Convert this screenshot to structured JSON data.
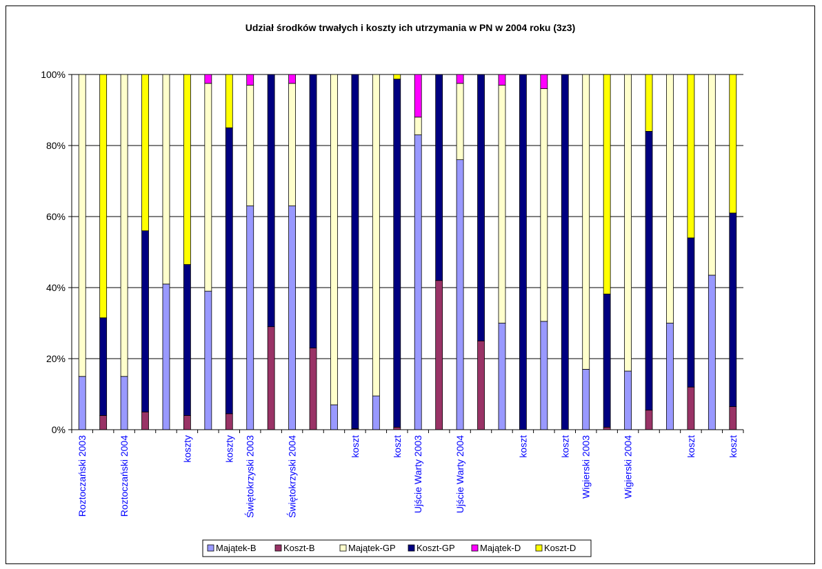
{
  "chart_data": {
    "type": "bar",
    "stacked": "percent",
    "title": "Udział środków trwałych i koszty ich utrzymania w PN w 2004 roku (3z3)",
    "xlabel": "",
    "ylabel": "",
    "ylim": [
      0,
      100
    ],
    "y_ticks": [
      "0%",
      "20%",
      "40%",
      "60%",
      "80%",
      "100%"
    ],
    "grid": true,
    "legend_position": "bottom",
    "categories": [
      "Roztoczański 2003",
      "",
      "Roztoczański 2004",
      "",
      "",
      "koszty",
      "",
      "koszty",
      "Świętokrzyski 2003",
      "",
      "Świętokrzyski 2004",
      "",
      "",
      "koszt",
      "",
      "koszt",
      "Ujście Warty 2003",
      "",
      "Ujście Warty 2004",
      "",
      "",
      "koszt",
      "",
      "koszt",
      "Wigierski 2003",
      "",
      "Wigierski 2004",
      "",
      "",
      "koszt",
      "",
      "koszt"
    ],
    "series": [
      {
        "name": "Majątek-B",
        "color": "#9999ff",
        "values": [
          15,
          0,
          15,
          0,
          41,
          0,
          39,
          0,
          63,
          0,
          63,
          0,
          7,
          0,
          9.5,
          0,
          83,
          0,
          76,
          0,
          30,
          0,
          30.5,
          0,
          17,
          0,
          16.5,
          0,
          30,
          0,
          43.5,
          0
        ]
      },
      {
        "name": "Koszt-B",
        "color": "#993366",
        "values": [
          0,
          4,
          0,
          5,
          0,
          4,
          0,
          4.5,
          0,
          29,
          0,
          23,
          0,
          0.3,
          0,
          0.7,
          0,
          42,
          0,
          25,
          0,
          0,
          0,
          0,
          0,
          0.7,
          0,
          5.5,
          0,
          12,
          0,
          6.5
        ]
      },
      {
        "name": "Majątek-GP",
        "color": "#ffffcc",
        "values": [
          85,
          0,
          85,
          0,
          59,
          0,
          58.5,
          0,
          34,
          0,
          34.5,
          0,
          93,
          0,
          90.5,
          0,
          5,
          0,
          21.5,
          0,
          67,
          0,
          65.5,
          0,
          83,
          0,
          83.5,
          0,
          70,
          0,
          56.5,
          0
        ]
      },
      {
        "name": "Koszt-GP",
        "color": "#000080",
        "values": [
          0,
          27.5,
          0,
          51,
          0,
          42.5,
          0,
          80.5,
          0,
          71,
          0,
          77,
          0,
          99.7,
          0,
          98,
          0,
          58,
          0,
          75,
          0,
          100,
          0,
          100,
          0,
          37.5,
          0,
          78.5,
          0,
          42,
          0,
          54.5
        ]
      },
      {
        "name": "Majątek-D",
        "color": "#ff00ff",
        "values": [
          0,
          0,
          0,
          0,
          0,
          0,
          2.5,
          0,
          3,
          0,
          2.5,
          0,
          0,
          0,
          0,
          0,
          12,
          0,
          2.5,
          0,
          3,
          0,
          4,
          0,
          0,
          0,
          0,
          0,
          0,
          0,
          0,
          0
        ]
      },
      {
        "name": "Koszt-D",
        "color": "#ffff00",
        "values": [
          0,
          68.5,
          0,
          44,
          0,
          53.5,
          0,
          15,
          0,
          0,
          0,
          0,
          0,
          0,
          0,
          1.3,
          0,
          0,
          0,
          0,
          0,
          0,
          0,
          0,
          0,
          61.8,
          0,
          16,
          0,
          46,
          0,
          39
        ]
      }
    ]
  }
}
